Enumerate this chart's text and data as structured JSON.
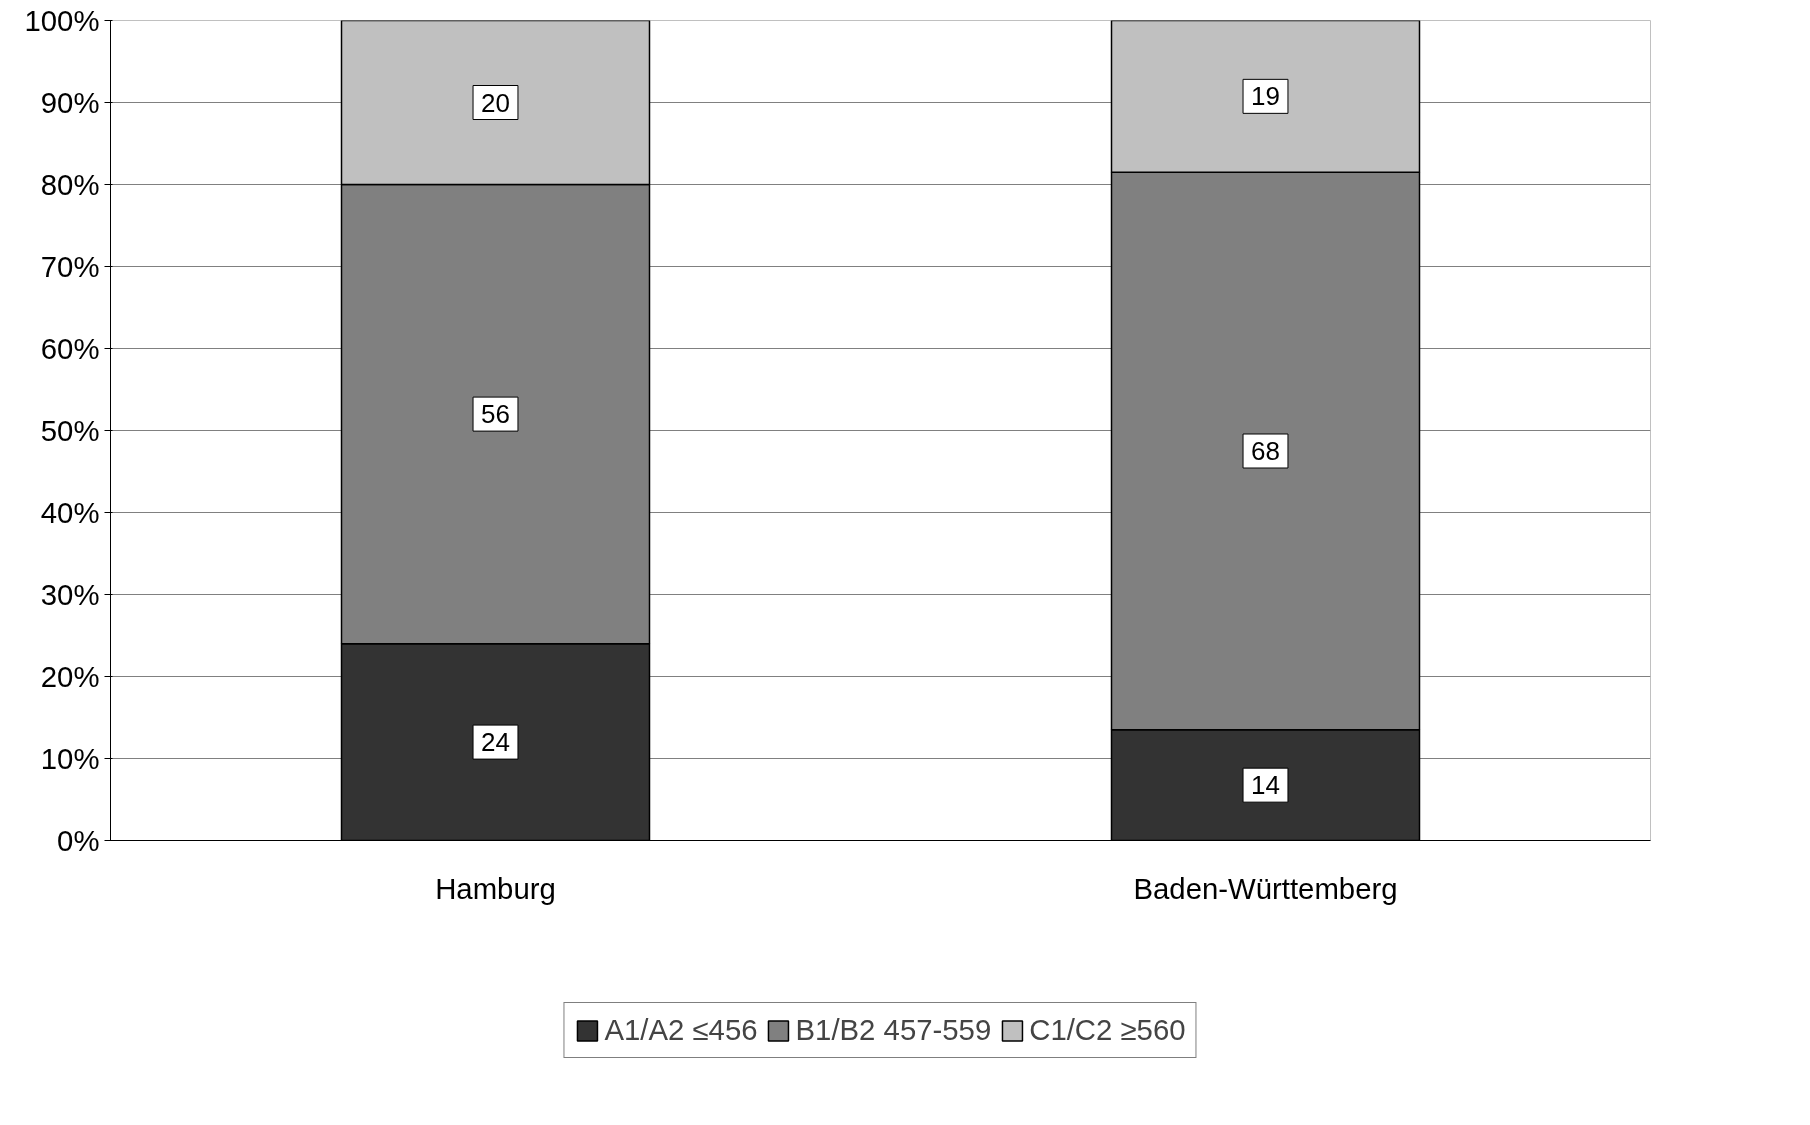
{
  "chart_data": {
    "type": "bar",
    "stacked": true,
    "categories": [
      "Hamburg",
      "Baden-Württemberg"
    ],
    "series": [
      {
        "name": "A1/A2 ≤456",
        "color": "#333333",
        "values": [
          24,
          13.5
        ],
        "value_labels": [
          "24",
          "14"
        ]
      },
      {
        "name": "B1/B2 457-559",
        "color": "#808080",
        "values": [
          56,
          68
        ],
        "value_labels": [
          "56",
          "68"
        ]
      },
      {
        "name": "C1/C2 ≥560",
        "color": "#c0c0c0",
        "values": [
          20,
          18.5
        ],
        "value_labels": [
          "20",
          "19"
        ]
      }
    ],
    "ylim": [
      0,
      100
    ],
    "yticks": [
      {
        "value": 0,
        "label": "0%"
      },
      {
        "value": 10,
        "label": "10%"
      },
      {
        "value": 20,
        "label": "20%"
      },
      {
        "value": 30,
        "label": "30%"
      },
      {
        "value": 40,
        "label": "40%"
      },
      {
        "value": 50,
        "label": "50%"
      },
      {
        "value": 60,
        "label": "60%"
      },
      {
        "value": 70,
        "label": "70%"
      },
      {
        "value": 80,
        "label": "80%"
      },
      {
        "value": 90,
        "label": "90%"
      },
      {
        "value": 100,
        "label": "100%"
      }
    ],
    "grid": "y",
    "legend": "bottom"
  }
}
